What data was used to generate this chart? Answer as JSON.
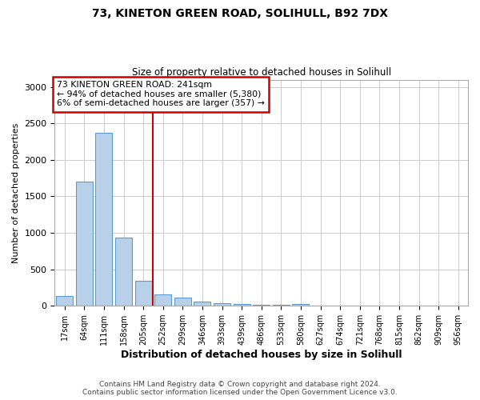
{
  "title1": "73, KINETON GREEN ROAD, SOLIHULL, B92 7DX",
  "title2": "Size of property relative to detached houses in Solihull",
  "xlabel": "Distribution of detached houses by size in Solihull",
  "ylabel": "Number of detached properties",
  "annotation_line1": "73 KINETON GREEN ROAD: 241sqm",
  "annotation_line2": "← 94% of detached houses are smaller (5,380)",
  "annotation_line3": "6% of semi-detached houses are larger (357) →",
  "footer1": "Contains HM Land Registry data © Crown copyright and database right 2024.",
  "footer2": "Contains public sector information licensed under the Open Government Licence v3.0.",
  "categories": [
    "17sqm",
    "64sqm",
    "111sqm",
    "158sqm",
    "205sqm",
    "252sqm",
    "299sqm",
    "346sqm",
    "393sqm",
    "439sqm",
    "486sqm",
    "533sqm",
    "580sqm",
    "627sqm",
    "674sqm",
    "721sqm",
    "768sqm",
    "815sqm",
    "862sqm",
    "909sqm",
    "956sqm"
  ],
  "values": [
    130,
    1700,
    2370,
    930,
    340,
    160,
    110,
    55,
    35,
    20,
    15,
    10,
    20,
    0,
    0,
    0,
    0,
    0,
    0,
    0,
    0
  ],
  "bar_color": "#b8d0e8",
  "bar_edge_color": "#5b9bd5",
  "vline_index": 5,
  "vline_color": "#cc0000",
  "annotation_box_color": "#cc0000",
  "ylim": [
    0,
    3100
  ],
  "yticks": [
    0,
    500,
    1000,
    1500,
    2000,
    2500,
    3000
  ],
  "background_color": "#ffffff",
  "grid_color": "#cccccc"
}
